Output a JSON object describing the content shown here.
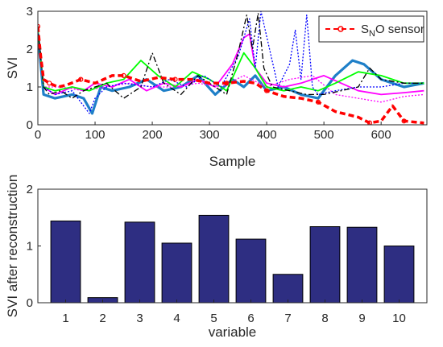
{
  "chart_data": [
    {
      "type": "line",
      "xlabel": "Sample",
      "ylabel": "SVI",
      "xlim": [
        0,
        680
      ],
      "ylim": [
        0,
        3
      ],
      "x_ticks": [
        0,
        100,
        200,
        300,
        400,
        500,
        600
      ],
      "y_ticks": [
        0,
        1,
        2,
        3
      ],
      "grid": false,
      "legend_position": "top-right",
      "legend": {
        "main": "S",
        "sub": "N",
        "tail": "O sensor"
      },
      "series": [
        {
          "name": "S_NO sensor",
          "color": "#ff0000",
          "style": "dashed-circle",
          "x": [
            0,
            5,
            10,
            20,
            35,
            50,
            75,
            100,
            130,
            150,
            180,
            210,
            240,
            270,
            300,
            330,
            360,
            380,
            400,
            430,
            460,
            490,
            520,
            560,
            580,
            600,
            620,
            640,
            660,
            675
          ],
          "y": [
            2.6,
            1.8,
            1.2,
            1.1,
            1.0,
            1.05,
            1.2,
            1.1,
            1.3,
            1.3,
            1.15,
            1.25,
            1.2,
            1.2,
            1.1,
            1.1,
            1.15,
            1.1,
            0.9,
            0.75,
            0.7,
            0.6,
            0.35,
            0.2,
            0.05,
            0.1,
            0.5,
            0.1,
            0.07,
            0.05
          ]
        },
        {
          "color": "#000000",
          "style": "dashdot",
          "x": [
            0,
            10,
            20,
            40,
            60,
            80,
            100,
            120,
            150,
            180,
            200,
            220,
            250,
            280,
            300,
            330,
            350,
            365,
            375,
            385,
            395,
            410,
            440,
            470,
            500,
            530,
            560,
            580,
            600,
            640,
            675
          ],
          "y": [
            2.6,
            1.0,
            0.8,
            0.9,
            0.7,
            0.9,
            1.0,
            1.1,
            0.7,
            1.0,
            1.9,
            1.1,
            0.8,
            1.3,
            1.1,
            0.8,
            1.9,
            2.9,
            2.0,
            2.95,
            1.5,
            1.0,
            0.9,
            0.8,
            0.8,
            0.9,
            1.0,
            1.5,
            1.2,
            1.1,
            1.1
          ]
        },
        {
          "color": "#0000ff",
          "style": "dotted",
          "x": [
            0,
            10,
            30,
            60,
            90,
            100,
            120,
            150,
            200,
            230,
            260,
            290,
            320,
            350,
            370,
            380,
            390,
            420,
            440,
            450,
            460,
            470,
            480,
            490,
            520,
            560,
            600,
            640,
            675
          ],
          "y": [
            2.5,
            1.0,
            0.8,
            0.9,
            0.3,
            0.7,
            1.0,
            1.1,
            1.0,
            1.2,
            1.0,
            1.3,
            1.0,
            1.8,
            2.8,
            1.5,
            3.0,
            1.0,
            1.6,
            2.5,
            1.2,
            2.9,
            1.0,
            0.8,
            0.9,
            1.0,
            1.0,
            1.1,
            1.1
          ]
        },
        {
          "color": "#00ff00",
          "style": "solid",
          "x": [
            0,
            10,
            30,
            60,
            90,
            120,
            150,
            180,
            210,
            240,
            270,
            300,
            330,
            360,
            380,
            400,
            430,
            460,
            490,
            520,
            560,
            600,
            640,
            675
          ],
          "y": [
            2.5,
            1.0,
            0.9,
            1.0,
            0.9,
            1.1,
            1.2,
            1.7,
            1.3,
            1.0,
            1.4,
            1.2,
            0.9,
            1.9,
            1.5,
            1.0,
            0.9,
            1.0,
            0.9,
            1.1,
            1.4,
            1.3,
            1.1,
            1.1
          ]
        },
        {
          "color": "#ff00ff",
          "style": "solid",
          "x": [
            0,
            10,
            30,
            60,
            80,
            100,
            130,
            160,
            190,
            220,
            250,
            280,
            310,
            340,
            360,
            370,
            380,
            400,
            430,
            460,
            500,
            530,
            560,
            600,
            640,
            675
          ],
          "y": [
            2.5,
            1.0,
            0.8,
            1.0,
            0.9,
            1.1,
            1.0,
            1.2,
            0.9,
            1.1,
            1.0,
            1.2,
            1.0,
            1.6,
            2.3,
            2.4,
            1.5,
            1.1,
            1.0,
            1.1,
            1.3,
            1.1,
            0.9,
            0.8,
            0.85,
            0.9
          ]
        },
        {
          "color": "#ff00ff",
          "style": "dotted",
          "x": [
            0,
            10,
            40,
            80,
            120,
            160,
            200,
            240,
            280,
            320,
            360,
            400,
            440,
            480,
            520,
            560,
            600,
            640,
            675
          ],
          "y": [
            2.4,
            1.0,
            1.0,
            0.9,
            1.0,
            1.1,
            1.0,
            1.0,
            1.1,
            1.0,
            1.3,
            1.0,
            1.2,
            1.3,
            0.8,
            0.7,
            0.6,
            0.75,
            0.8
          ]
        },
        {
          "color": "#1e7fc8",
          "style": "thick",
          "x": [
            0,
            10,
            30,
            60,
            80,
            95,
            110,
            130,
            160,
            190,
            220,
            250,
            280,
            310,
            340,
            360,
            380,
            400,
            430,
            460,
            490,
            520,
            550,
            570,
            600,
            640,
            675
          ],
          "y": [
            2.4,
            0.8,
            0.7,
            0.8,
            0.7,
            0.3,
            1.0,
            0.9,
            1.0,
            1.2,
            0.9,
            1.0,
            1.3,
            0.8,
            1.2,
            1.0,
            1.3,
            0.9,
            1.0,
            0.8,
            0.7,
            1.3,
            1.7,
            1.6,
            1.2,
            1.0,
            1.1
          ]
        }
      ]
    },
    {
      "type": "bar",
      "xlabel": "variable",
      "ylabel": "SVI after reconstruction",
      "categories": [
        "1",
        "2",
        "3",
        "4",
        "5",
        "6",
        "7",
        "8",
        "9",
        "10"
      ],
      "values": [
        1.44,
        0.09,
        1.42,
        1.05,
        1.54,
        1.12,
        0.5,
        1.34,
        1.33,
        1.0
      ],
      "ylim": [
        0,
        2
      ],
      "y_ticks": [
        0,
        1,
        2
      ],
      "bar_color": "#2e2e82",
      "grid": false
    }
  ]
}
